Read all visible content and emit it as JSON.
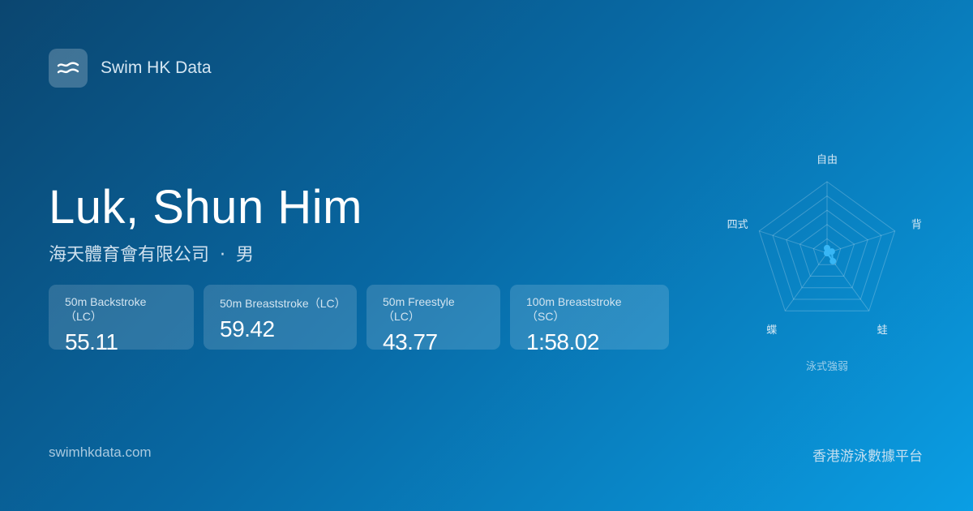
{
  "brand": {
    "name": "Swim HK Data",
    "icon": "waves-icon"
  },
  "swimmer": {
    "name": "Luk, Shun Him",
    "club": "海天體育會有限公司",
    "separator": "·",
    "gender": "男"
  },
  "results": [
    {
      "event": "50m Backstroke（LC）",
      "time": "55.11"
    },
    {
      "event": "50m Breaststroke（LC）",
      "time": "59.42"
    },
    {
      "event": "50m Freestyle（LC）",
      "time": "43.77"
    },
    {
      "event": "100m Breaststroke（SC）",
      "time": "1:58.02"
    }
  ],
  "chart_data": {
    "type": "radar",
    "title": "泳式強弱",
    "axes": [
      "自由",
      "背",
      "蛙",
      "蝶",
      "四式"
    ],
    "values": [
      0.07,
      0.07,
      0.14,
      0,
      0
    ],
    "range": [
      0,
      1
    ],
    "rings": 5,
    "color": "#38b6f5"
  },
  "footer": {
    "url": "swimhkdata.com",
    "tagline": "香港游泳數據平台"
  }
}
